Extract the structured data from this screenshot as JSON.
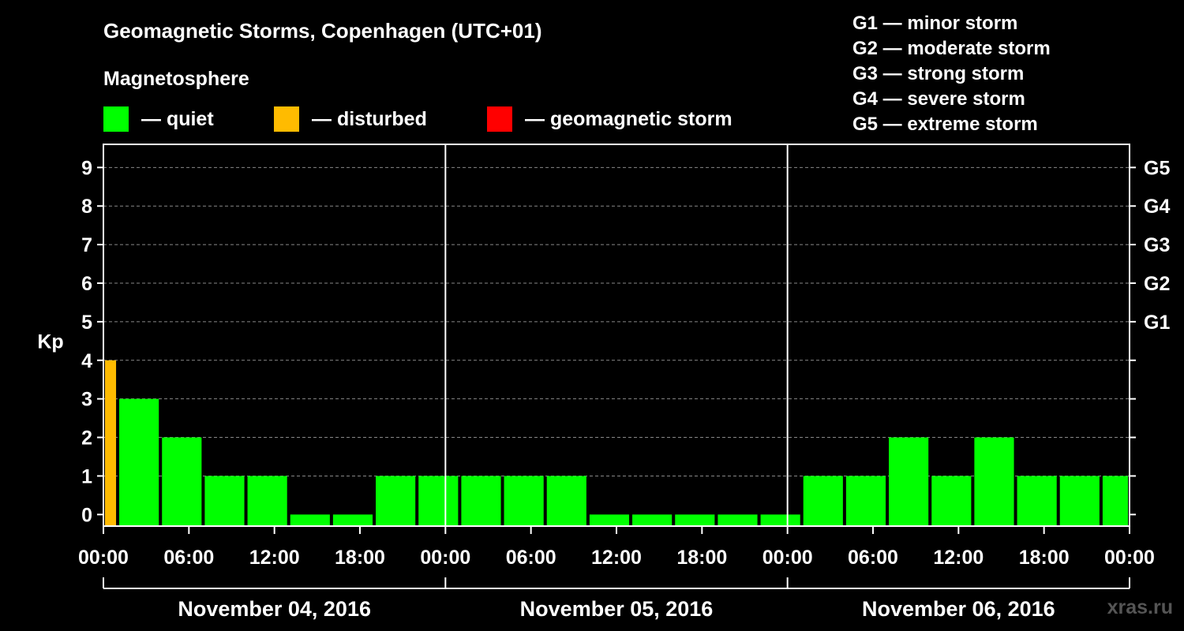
{
  "title": "Geomagnetic Storms, Copenhagen (UTC+01)",
  "subtitle": "Magnetosphere",
  "legend": [
    {
      "label": "— quiet",
      "color": "#00ff00"
    },
    {
      "label": "— disturbed",
      "color": "#ffbb00"
    },
    {
      "label": "— geomagnetic storm",
      "color": "#ff0000"
    }
  ],
  "g_legend": [
    "G1 — minor storm",
    "G2 — moderate storm",
    "G3 — strong storm",
    "G4 — severe storm",
    "G5 — extreme storm"
  ],
  "watermark": "xras.ru",
  "chart_data": {
    "type": "bar",
    "title": "Geomagnetic Storms, Copenhagen (UTC+01)",
    "ylabel": "Kp",
    "ylim": [
      -0.3,
      9.6
    ],
    "yticks": [
      0,
      1,
      2,
      3,
      4,
      5,
      6,
      7,
      8,
      9
    ],
    "right_ticks": [
      {
        "kp": 5,
        "label": "G1"
      },
      {
        "kp": 6,
        "label": "G2"
      },
      {
        "kp": 7,
        "label": "G3"
      },
      {
        "kp": 8,
        "label": "G4"
      },
      {
        "kp": 9,
        "label": "G5"
      }
    ],
    "xlim_hours": [
      0,
      72
    ],
    "xtick_labels": [
      "00:00",
      "06:00",
      "12:00",
      "18:00",
      "00:00",
      "06:00",
      "12:00",
      "18:00",
      "00:00",
      "06:00",
      "12:00",
      "18:00",
      "00:00"
    ],
    "day_labels": [
      "November 04, 2016",
      "November 05, 2016",
      "November 06, 2016"
    ],
    "bars": [
      {
        "start": 0,
        "end": 1,
        "value": 4,
        "status": "disturbed"
      },
      {
        "start": 1,
        "end": 4,
        "value": 3,
        "status": "quiet"
      },
      {
        "start": 4,
        "end": 7,
        "value": 2,
        "status": "quiet"
      },
      {
        "start": 7,
        "end": 10,
        "value": 1,
        "status": "quiet"
      },
      {
        "start": 10,
        "end": 13,
        "value": 1,
        "status": "quiet"
      },
      {
        "start": 13,
        "end": 16,
        "value": 0,
        "status": "quiet"
      },
      {
        "start": 16,
        "end": 19,
        "value": 0,
        "status": "quiet"
      },
      {
        "start": 19,
        "end": 22,
        "value": 1,
        "status": "quiet"
      },
      {
        "start": 22,
        "end": 25,
        "value": 1,
        "status": "quiet"
      },
      {
        "start": 25,
        "end": 28,
        "value": 1,
        "status": "quiet"
      },
      {
        "start": 28,
        "end": 31,
        "value": 1,
        "status": "quiet"
      },
      {
        "start": 31,
        "end": 34,
        "value": 1,
        "status": "quiet"
      },
      {
        "start": 34,
        "end": 37,
        "value": 0,
        "status": "quiet"
      },
      {
        "start": 37,
        "end": 40,
        "value": 0,
        "status": "quiet"
      },
      {
        "start": 40,
        "end": 43,
        "value": 0,
        "status": "quiet"
      },
      {
        "start": 43,
        "end": 46,
        "value": 0,
        "status": "quiet"
      },
      {
        "start": 46,
        "end": 49,
        "value": 0,
        "status": "quiet"
      },
      {
        "start": 49,
        "end": 52,
        "value": 1,
        "status": "quiet"
      },
      {
        "start": 52,
        "end": 55,
        "value": 1,
        "status": "quiet"
      },
      {
        "start": 55,
        "end": 58,
        "value": 2,
        "status": "quiet"
      },
      {
        "start": 58,
        "end": 61,
        "value": 1,
        "status": "quiet"
      },
      {
        "start": 61,
        "end": 64,
        "value": 2,
        "status": "quiet"
      },
      {
        "start": 64,
        "end": 67,
        "value": 1,
        "status": "quiet"
      },
      {
        "start": 67,
        "end": 70,
        "value": 1,
        "status": "quiet"
      },
      {
        "start": 70,
        "end": 72,
        "value": 1,
        "status": "quiet"
      }
    ],
    "status_colors": {
      "quiet": "#00ff00",
      "disturbed": "#ffbb00",
      "storm": "#ff0000"
    }
  }
}
